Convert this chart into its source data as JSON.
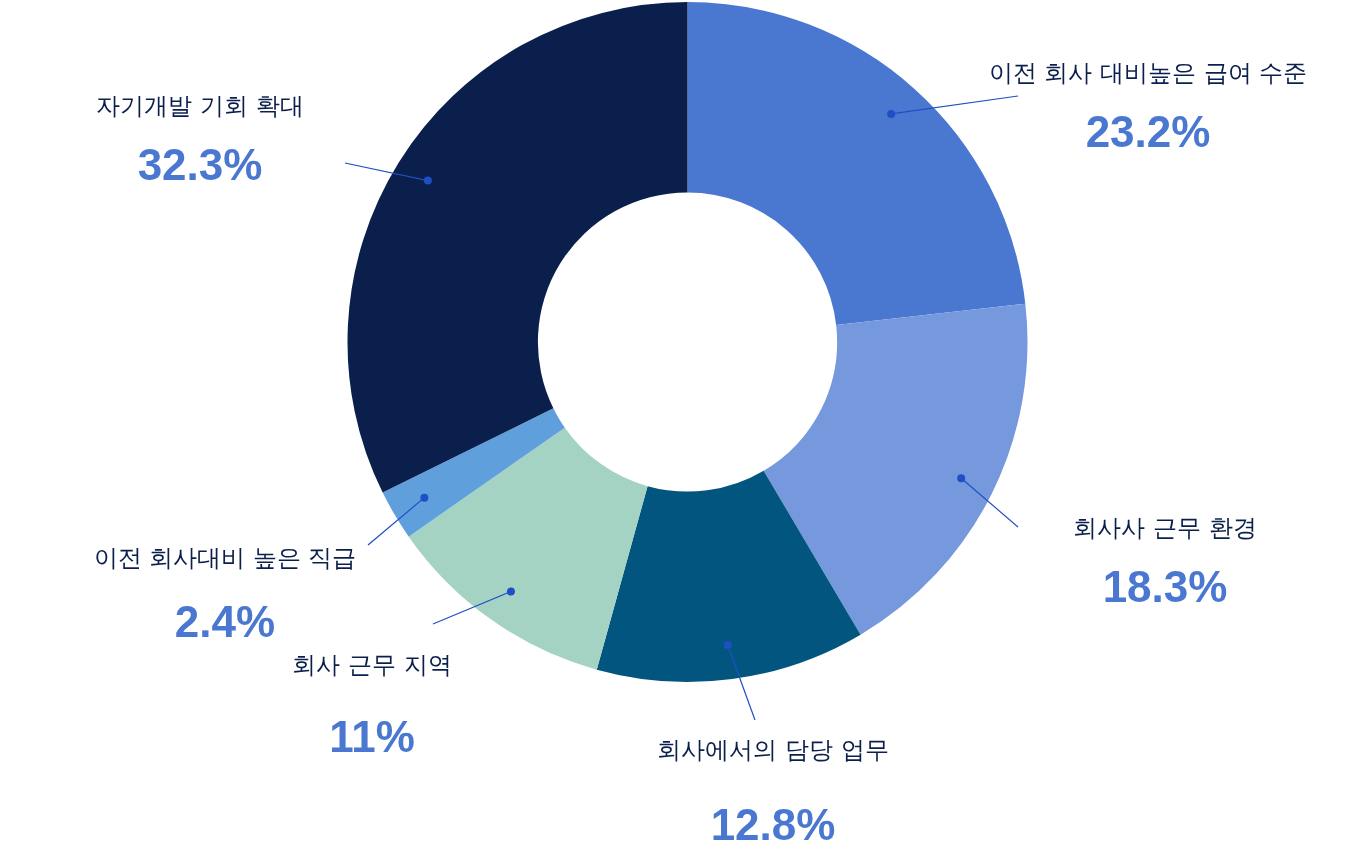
{
  "chart_data": {
    "type": "donut",
    "categories": [
      "이전 회사 대비높은 급여 수준",
      "회사사 근무 환경",
      "회사에서의 담당 업무",
      "회사 근무 지역",
      "이전 회사대비 높은 직급",
      "자기개발 기회 확대"
    ],
    "values": [
      23.2,
      18.3,
      12.8,
      11,
      2.4,
      32.3
    ],
    "value_labels": [
      "23.2%",
      "18.3%",
      "12.8%",
      "11%",
      "2.4%",
      "32.3%"
    ],
    "colors": [
      "#4a77d0",
      "#7599dc",
      "#02557e",
      "#a4d3c4",
      "#5fa0dc",
      "#0a1f4b"
    ],
    "legend": false
  }
}
